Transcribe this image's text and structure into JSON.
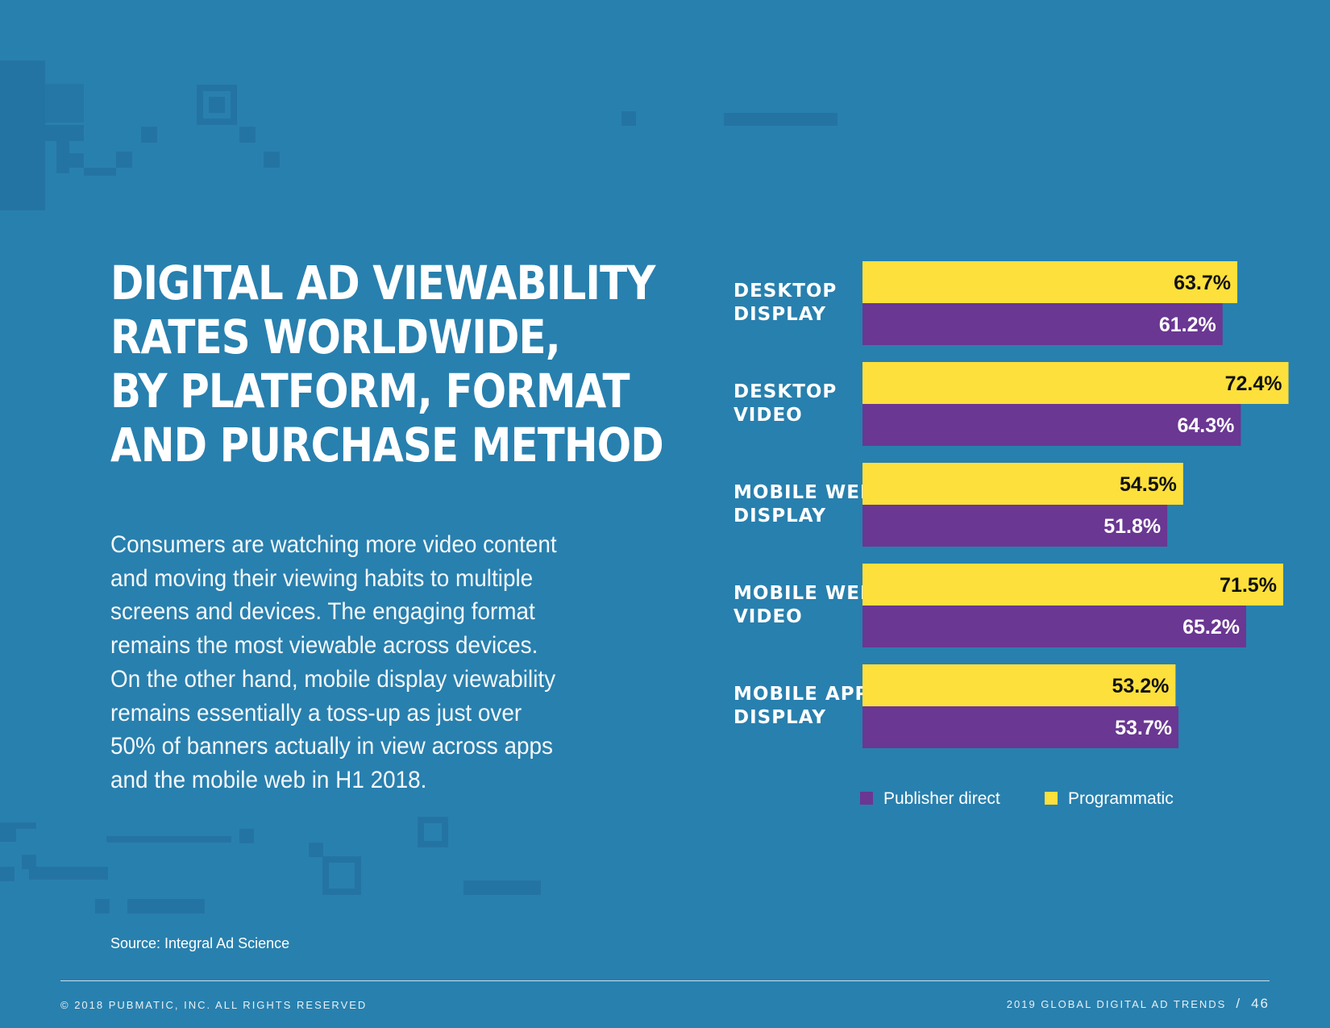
{
  "title": {
    "lines": [
      "DIGITAL AD VIEWABILITY",
      "RATES WORLDWIDE,",
      "BY PLATFORM, FORMAT",
      "AND PURCHASE METHOD"
    ]
  },
  "body": {
    "lines": [
      "Consumers are watching more video content",
      "and moving their viewing habits to multiple",
      "screens and devices. The engaging format",
      "remains the most viewable across devices.",
      "On the other hand, mobile display viewability",
      "remains essentially a toss-up as just over",
      "50% of banners actually in view across apps",
      "and the mobile web in H1 2018."
    ]
  },
  "chart_data": {
    "type": "bar",
    "orientation": "horizontal",
    "title": "DIGITAL AD VIEWABILITY RATES WORLDWIDE, BY PLATFORM, FORMAT AND PURCHASE METHOD",
    "categories": [
      [
        "DESKTOP",
        "DISPLAY"
      ],
      [
        "DESKTOP",
        "VIDEO"
      ],
      [
        "MOBILE WEB",
        "DISPLAY"
      ],
      [
        "MOBILE WEB",
        "VIDEO"
      ],
      [
        "MOBILE APP",
        "DISPLAY"
      ]
    ],
    "series": [
      {
        "name": "Programmatic",
        "color": "#fde03b",
        "label_color": "#111111",
        "values": [
          63.7,
          72.4,
          54.5,
          71.5,
          53.2
        ],
        "labels": [
          "63.7%",
          "72.4%",
          "54.5%",
          "71.5%",
          "53.2%"
        ]
      },
      {
        "name": "Publisher direct",
        "color": "#6a3792",
        "label_color": "#ffffff",
        "values": [
          61.2,
          64.3,
          51.8,
          65.2,
          53.7
        ],
        "labels": [
          "61.2%",
          "64.3%",
          "51.8%",
          "65.2%",
          "53.7%"
        ]
      }
    ],
    "legend": [
      {
        "name": "Publisher direct",
        "color": "#6a3792"
      },
      {
        "name": "Programmatic",
        "color": "#fde03b"
      }
    ],
    "legend_position": "bottom",
    "xlim": [
      0,
      100
    ],
    "grid": false,
    "axes_visible": false
  },
  "source": "Source: Integral Ad Science",
  "footer": {
    "copyright": "© 2018 PUBMATIC, INC. ALL RIGHTS RESERVED",
    "report": "2019 GLOBAL DIGITAL AD TRENDS",
    "separator": "/",
    "page": "46"
  }
}
